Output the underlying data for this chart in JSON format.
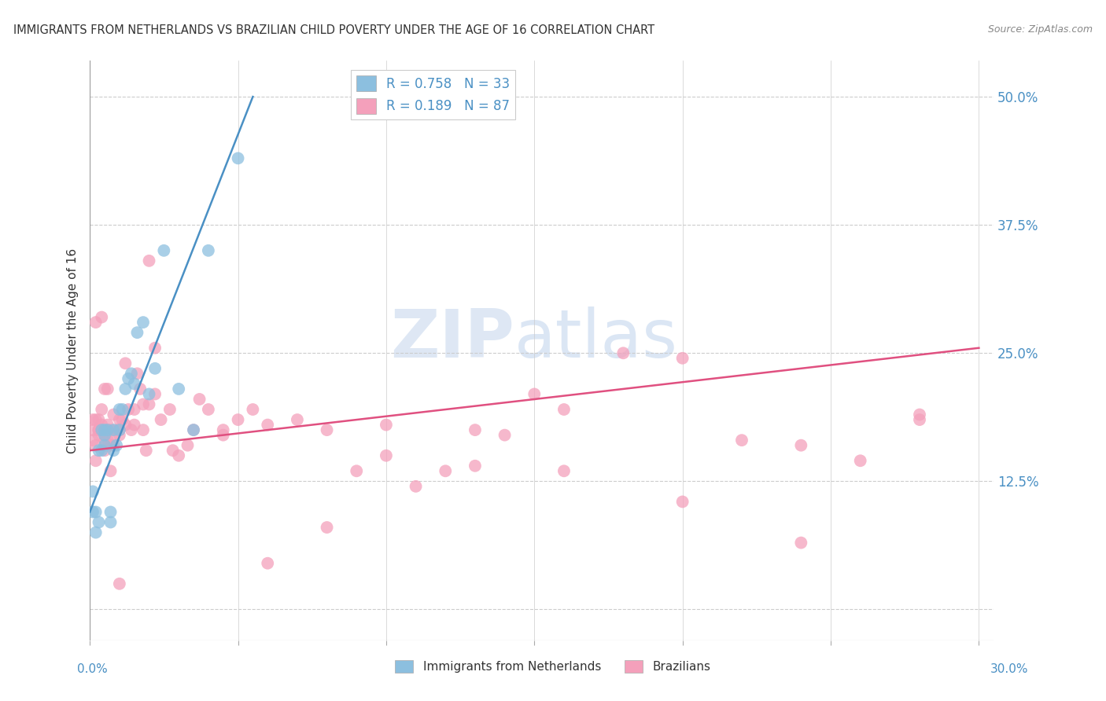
{
  "title": "IMMIGRANTS FROM NETHERLANDS VS BRAZILIAN CHILD POVERTY UNDER THE AGE OF 16 CORRELATION CHART",
  "source": "Source: ZipAtlas.com",
  "ylabel": "Child Poverty Under the Age of 16",
  "legend_entry1": "R = 0.758   N = 33",
  "legend_entry2": "R = 0.189   N = 87",
  "legend_label1": "Immigrants from Netherlands",
  "legend_label2": "Brazilians",
  "color_blue": "#8cbfdf",
  "color_pink": "#f4a0bb",
  "color_blue_line": "#4a90c4",
  "color_pink_line": "#e05080",
  "color_blue_text": "#4a90c4",
  "background_color": "#ffffff",
  "watermark_zip": "ZIP",
  "watermark_atlas": "atlas",
  "blue_scatter_x": [
    0.001,
    0.001,
    0.002,
    0.002,
    0.003,
    0.003,
    0.004,
    0.004,
    0.005,
    0.005,
    0.005,
    0.006,
    0.007,
    0.007,
    0.008,
    0.008,
    0.009,
    0.01,
    0.01,
    0.011,
    0.012,
    0.013,
    0.014,
    0.015,
    0.016,
    0.018,
    0.02,
    0.022,
    0.025,
    0.03,
    0.035,
    0.04,
    0.05
  ],
  "blue_scatter_y": [
    0.095,
    0.115,
    0.075,
    0.095,
    0.085,
    0.155,
    0.155,
    0.175,
    0.16,
    0.17,
    0.175,
    0.175,
    0.085,
    0.095,
    0.155,
    0.175,
    0.16,
    0.195,
    0.175,
    0.195,
    0.215,
    0.225,
    0.23,
    0.22,
    0.27,
    0.28,
    0.21,
    0.235,
    0.35,
    0.215,
    0.175,
    0.35,
    0.44
  ],
  "pink_scatter_x": [
    0.001,
    0.001,
    0.001,
    0.002,
    0.002,
    0.002,
    0.003,
    0.003,
    0.003,
    0.004,
    0.004,
    0.004,
    0.005,
    0.005,
    0.005,
    0.006,
    0.006,
    0.006,
    0.007,
    0.007,
    0.008,
    0.008,
    0.009,
    0.01,
    0.01,
    0.011,
    0.012,
    0.013,
    0.014,
    0.015,
    0.016,
    0.017,
    0.018,
    0.019,
    0.02,
    0.022,
    0.024,
    0.027,
    0.03,
    0.033,
    0.037,
    0.04,
    0.045,
    0.05,
    0.055,
    0.06,
    0.07,
    0.08,
    0.09,
    0.1,
    0.11,
    0.12,
    0.13,
    0.14,
    0.15,
    0.16,
    0.18,
    0.2,
    0.22,
    0.24,
    0.26,
    0.28,
    0.002,
    0.003,
    0.004,
    0.005,
    0.006,
    0.007,
    0.008,
    0.01,
    0.012,
    0.015,
    0.018,
    0.022,
    0.028,
    0.035,
    0.045,
    0.06,
    0.08,
    0.1,
    0.13,
    0.16,
    0.2,
    0.24,
    0.28,
    0.01,
    0.02
  ],
  "pink_scatter_y": [
    0.165,
    0.175,
    0.185,
    0.16,
    0.185,
    0.145,
    0.17,
    0.175,
    0.185,
    0.175,
    0.18,
    0.195,
    0.165,
    0.155,
    0.17,
    0.18,
    0.175,
    0.165,
    0.16,
    0.175,
    0.17,
    0.19,
    0.175,
    0.185,
    0.17,
    0.185,
    0.24,
    0.195,
    0.175,
    0.18,
    0.23,
    0.215,
    0.2,
    0.155,
    0.2,
    0.21,
    0.185,
    0.195,
    0.15,
    0.16,
    0.205,
    0.195,
    0.175,
    0.185,
    0.195,
    0.18,
    0.185,
    0.175,
    0.135,
    0.18,
    0.12,
    0.135,
    0.175,
    0.17,
    0.21,
    0.195,
    0.25,
    0.245,
    0.165,
    0.16,
    0.145,
    0.19,
    0.28,
    0.175,
    0.285,
    0.215,
    0.215,
    0.135,
    0.16,
    0.175,
    0.18,
    0.195,
    0.175,
    0.255,
    0.155,
    0.175,
    0.17,
    0.045,
    0.08,
    0.15,
    0.14,
    0.135,
    0.105,
    0.065,
    0.185,
    0.025,
    0.34
  ],
  "blue_line_x": [
    0.0,
    0.055
  ],
  "blue_line_y": [
    0.095,
    0.5
  ],
  "pink_line_x": [
    0.0,
    0.3
  ],
  "pink_line_y": [
    0.155,
    0.255
  ],
  "xlim": [
    0.0,
    0.305
  ],
  "ylim": [
    -0.03,
    0.535
  ],
  "yticks": [
    0.0,
    0.125,
    0.25,
    0.375,
    0.5
  ],
  "ytick_labels": [
    "",
    "12.5%",
    "25.0%",
    "37.5%",
    "50.0%"
  ],
  "xtick_label_left": "0.0%",
  "xtick_label_right": "30.0%"
}
